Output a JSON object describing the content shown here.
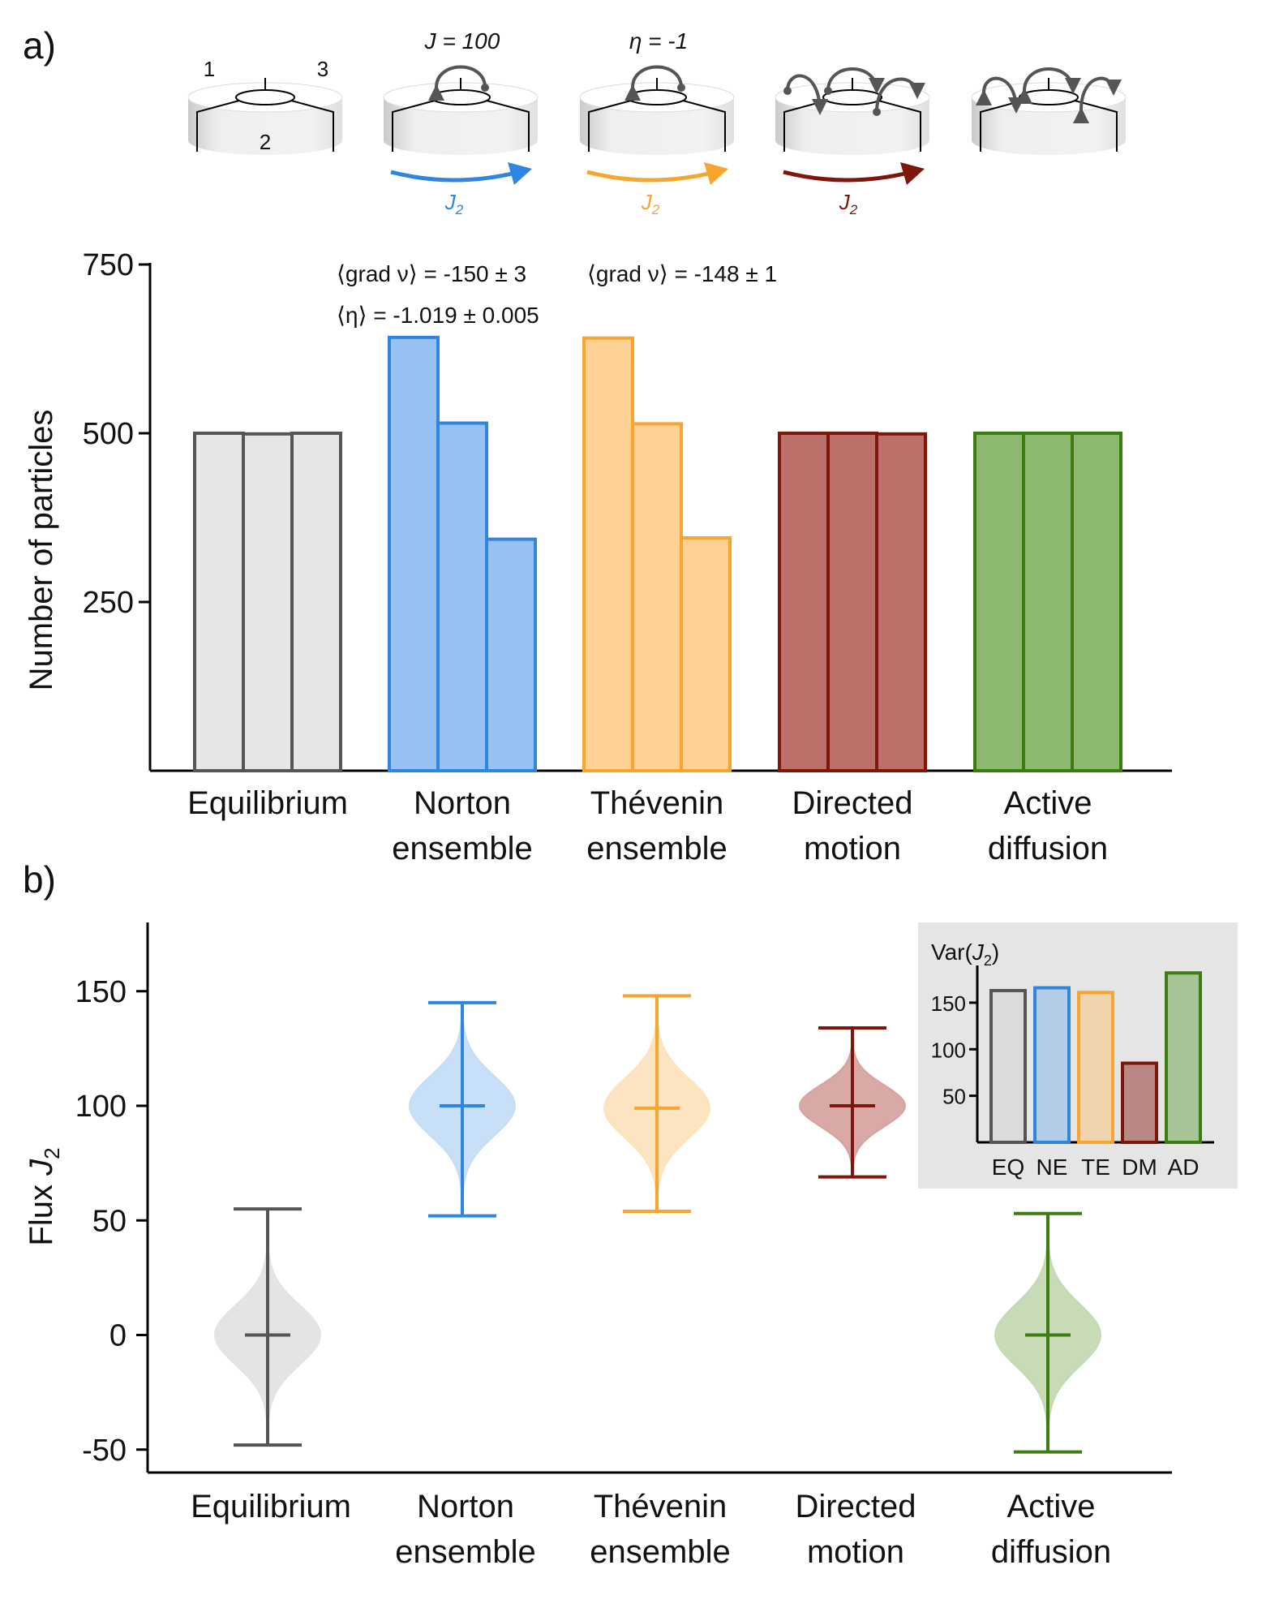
{
  "panels": {
    "a": "a)",
    "b": "b)"
  },
  "schematics": {
    "region_labels": [
      "1",
      "2",
      "3"
    ],
    "J_label": "J = 100",
    "eta_label": "η = -1",
    "flux_label": "J",
    "flux_sub": "2",
    "colors": {
      "norton": "#2f86e0",
      "thevenin": "#f7a52e",
      "directed": "#7e160b"
    }
  },
  "annotations": {
    "norton_grad": "⟨grad ν⟩ = -150 ± 3",
    "norton_eta": "⟨η⟩ = -1.019 ± 0.005",
    "thevenin_grad": "⟨grad ν⟩ = -148 ± 1"
  },
  "chart_data": [
    {
      "type": "bar",
      "panel": "a",
      "ylabel": "Number of particles",
      "ylim": [
        0,
        750
      ],
      "yticks": [
        250,
        500,
        750
      ],
      "groups": [
        {
          "name": "Equilibrium",
          "label_lines": [
            "Equilibrium"
          ],
          "values": [
            500,
            499,
            500
          ],
          "fill": "#e5e5e5",
          "stroke": "#555555"
        },
        {
          "name": "Norton ensemble",
          "label_lines": [
            "Norton",
            "ensemble"
          ],
          "values": [
            642,
            515,
            343
          ],
          "fill": "#97c1f3",
          "stroke": "#2f86e0"
        },
        {
          "name": "Thévenin ensemble",
          "label_lines": [
            "Thévenin",
            "ensemble"
          ],
          "values": [
            641,
            514,
            345
          ],
          "fill": "#fdd093",
          "stroke": "#f7a52e"
        },
        {
          "name": "Directed motion",
          "label_lines": [
            "Directed",
            "motion"
          ],
          "values": [
            500,
            500,
            499
          ],
          "fill": "#bb716a",
          "stroke": "#7e160b"
        },
        {
          "name": "Active diffusion",
          "label_lines": [
            "Active",
            "diffusion"
          ],
          "values": [
            500,
            500,
            500
          ],
          "fill": "#8cb86f",
          "stroke": "#3c7d10"
        }
      ]
    },
    {
      "type": "violin",
      "panel": "b",
      "ylabel": "Flux J",
      "ylabel_sub": "2",
      "ylim": [
        -60,
        180
      ],
      "yticks": [
        -50,
        0,
        50,
        100,
        150
      ],
      "groups": [
        {
          "name": "Equilibrium",
          "label_lines": [
            "Equilibrium"
          ],
          "min": -48,
          "max": 55,
          "median": 0,
          "sd": 13,
          "color": "#555555",
          "fill": "#e3e3e3"
        },
        {
          "name": "Norton ensemble",
          "label_lines": [
            "Norton",
            "ensemble"
          ],
          "min": 52,
          "max": 145,
          "median": 100,
          "sd": 13,
          "color": "#2f86e0",
          "fill": "#c5ddf8"
        },
        {
          "name": "Thévenin ensemble",
          "label_lines": [
            "Thévenin",
            "ensemble"
          ],
          "min": 54,
          "max": 148,
          "median": 99,
          "sd": 13,
          "color": "#f7a52e",
          "fill": "#fde3bd"
        },
        {
          "name": "Directed motion",
          "label_lines": [
            "Directed",
            "motion"
          ],
          "min": 69,
          "max": 134,
          "median": 100,
          "sd": 9,
          "color": "#7e160b",
          "fill": "#d6a4a0"
        },
        {
          "name": "Active diffusion",
          "label_lines": [
            "Active",
            "diffusion"
          ],
          "min": -51,
          "max": 53,
          "median": 0,
          "sd": 13.5,
          "color": "#3c7d10",
          "fill": "#c4d9b3"
        }
      ]
    },
    {
      "type": "bar",
      "panel": "b-inset",
      "title": "Var(J",
      "title_sub": "2",
      "title_end": ")",
      "ylim": [
        0,
        190
      ],
      "yticks": [
        50,
        100,
        150
      ],
      "categories": [
        "EQ",
        "NE",
        "TE",
        "DM",
        "AD"
      ],
      "values": [
        163,
        166,
        161,
        85,
        182
      ],
      "fills": [
        "#dcdcdc",
        "#b3cde9",
        "#efd4ad",
        "#b98884",
        "#a8c496"
      ],
      "strokes": [
        "#555555",
        "#2f86e0",
        "#f7a52e",
        "#7e160b",
        "#3c7d10"
      ]
    }
  ]
}
